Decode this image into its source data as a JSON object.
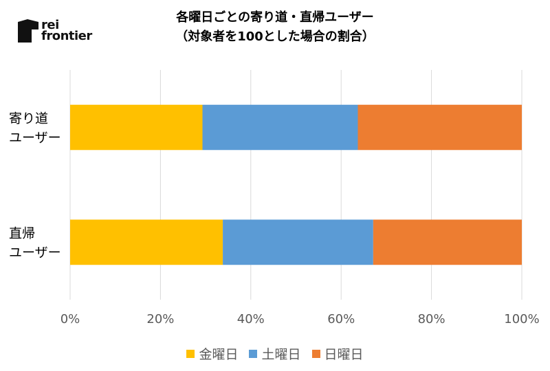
{
  "logo": {
    "line1": "rei",
    "line2": "frontier",
    "icon": "rf-logo-mark"
  },
  "chart_data": {
    "type": "bar",
    "orientation": "horizontal",
    "stacked": "percent",
    "title": "各曜日ごとの寄り道・直帰ユーザー",
    "subtitle": "（対象者を100とした場合の割合）",
    "categories": [
      "寄り道\nユーザー",
      "直帰\nユーザー"
    ],
    "series": [
      {
        "name": "金曜日",
        "color": "#FFC000",
        "values": [
          29.3,
          33.8
        ]
      },
      {
        "name": "土曜日",
        "color": "#5B9BD5",
        "values": [
          34.4,
          33.3
        ]
      },
      {
        "name": "日曜日",
        "color": "#ED7D31",
        "values": [
          36.3,
          32.9
        ]
      }
    ],
    "xlim": [
      0,
      100
    ],
    "xticks": [
      "0%",
      "20%",
      "40%",
      "60%",
      "80%",
      "100%"
    ],
    "grid": true,
    "legend": "bottom"
  }
}
